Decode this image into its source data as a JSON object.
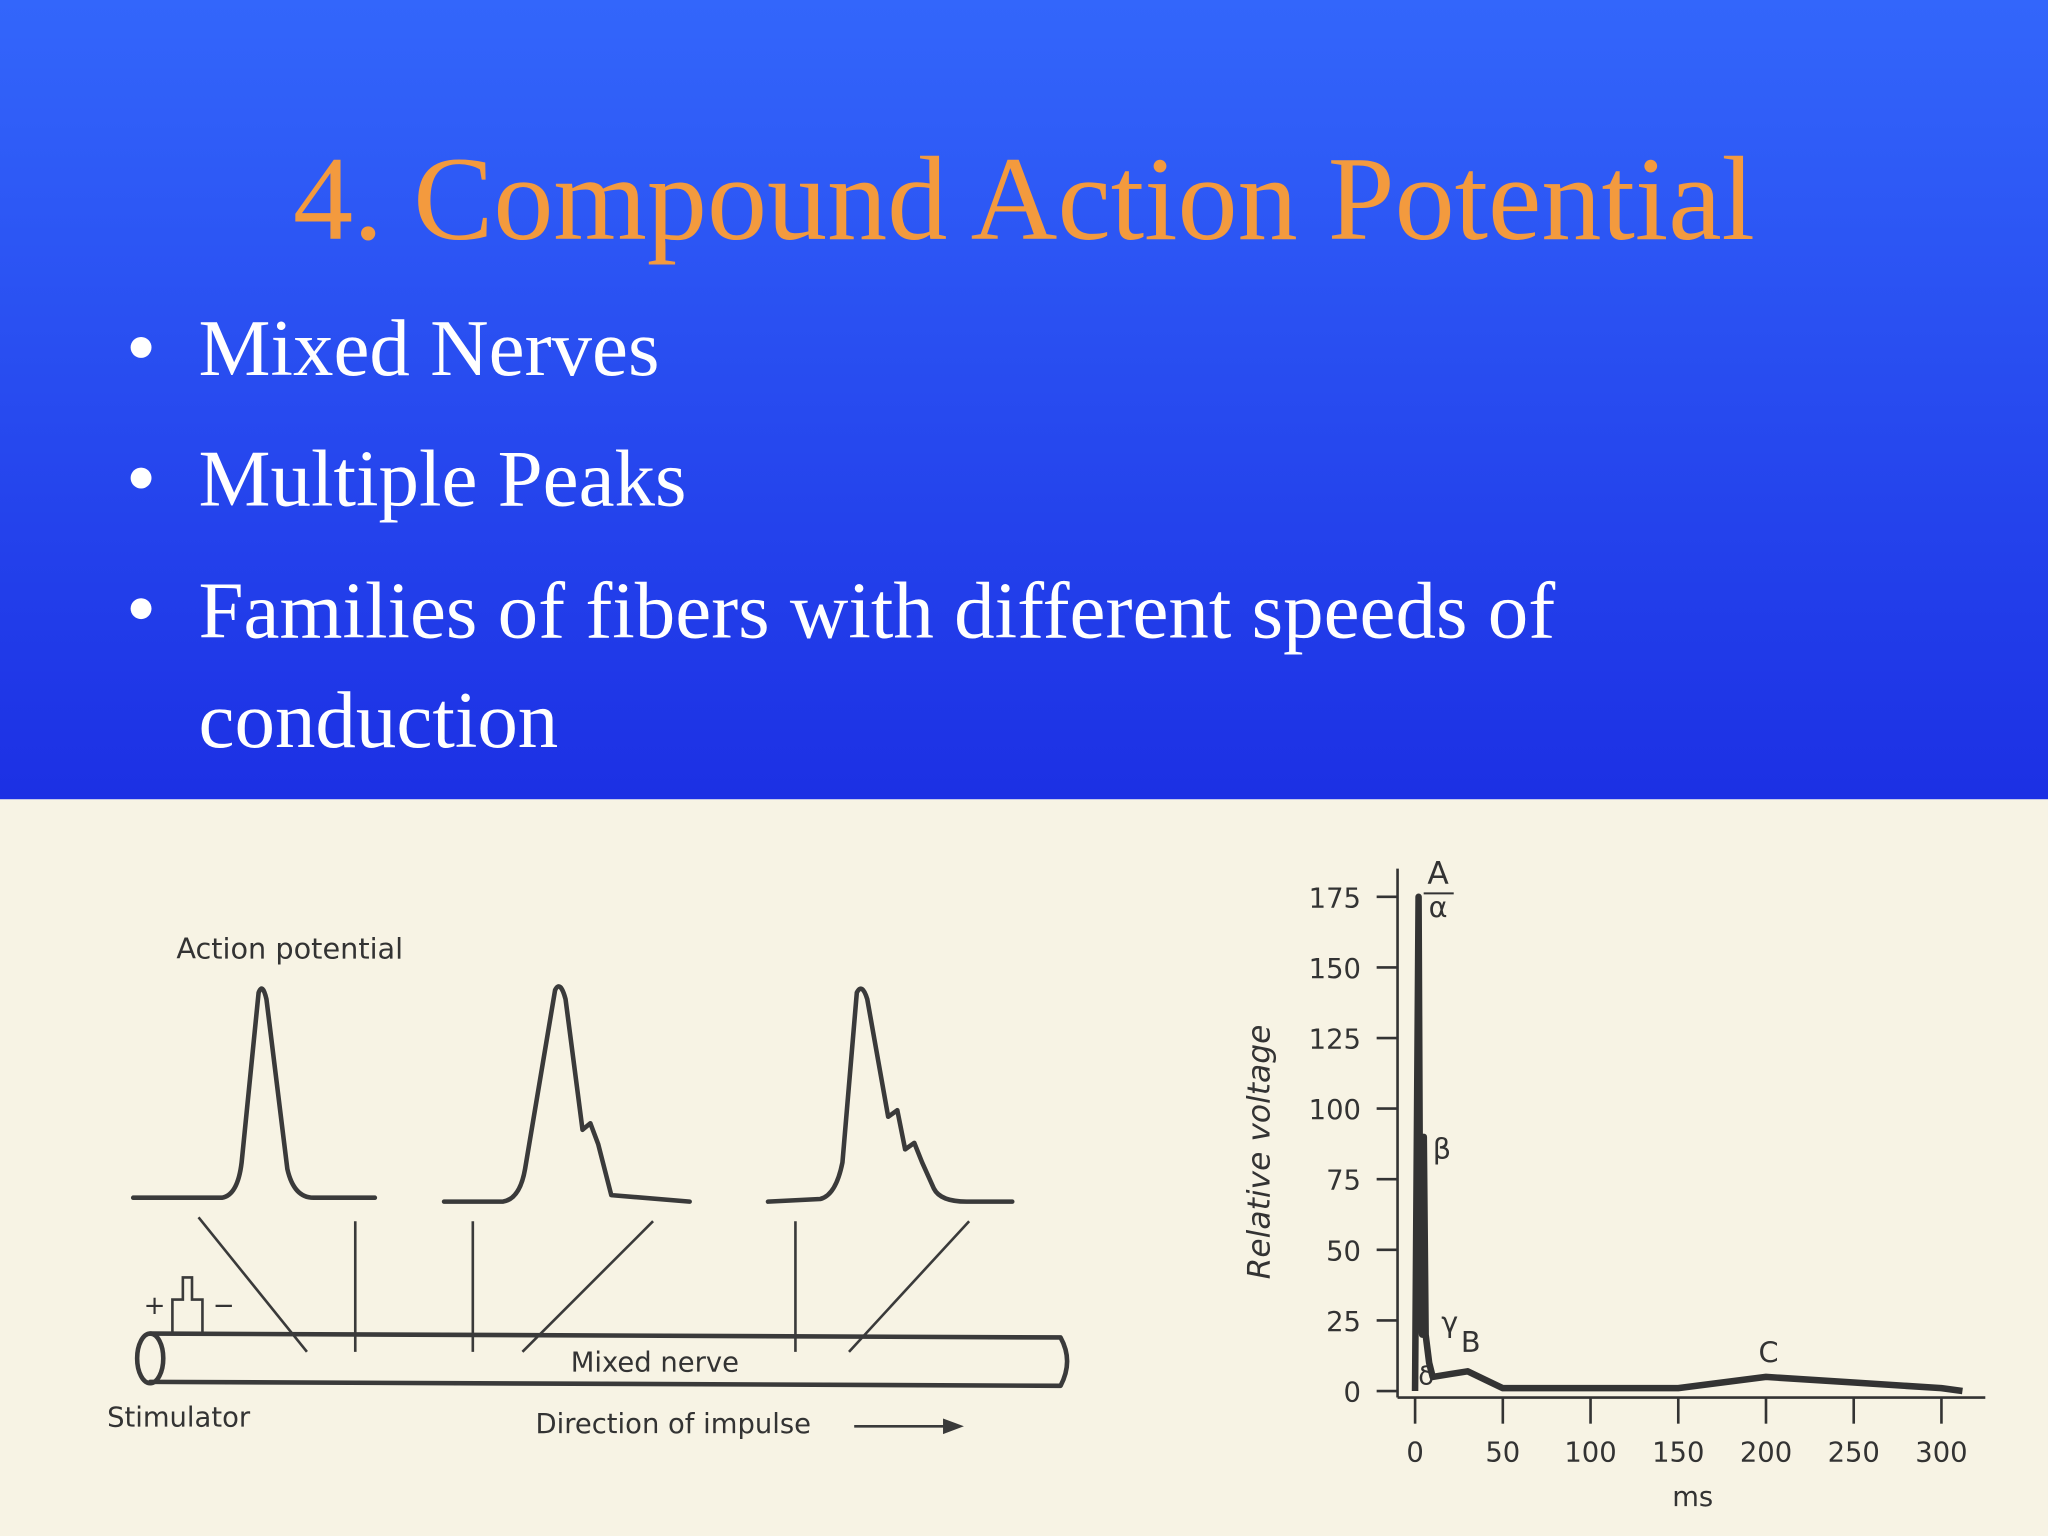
{
  "title": "4. Compound Action Potential",
  "bullets": [
    "Mixed Nerves",
    "Multiple Peaks",
    "Families of fibers with different speeds of",
    "conduction"
  ],
  "figure": {
    "diagram": {
      "action_potential": "Action potential",
      "mixed_nerve": "Mixed nerve",
      "stimulator": "Stimulator",
      "direction": "Direction of impulse",
      "plus": "+",
      "minus": "−"
    },
    "chart": {
      "type": "line",
      "y_label": "Relative voltage",
      "x_label": "ms",
      "x": [
        0,
        2,
        3,
        4,
        5,
        6,
        8,
        10,
        20,
        30,
        40,
        50,
        100,
        150,
        200,
        250,
        300,
        312
      ],
      "values": [
        0,
        175,
        30,
        20,
        90,
        20,
        10,
        5,
        6,
        7,
        4,
        1,
        1,
        1,
        5,
        3,
        1,
        0
      ],
      "color": "#333333",
      "xlim": [
        -10,
        325
      ],
      "ylim": [
        0,
        185
      ],
      "xticks": [
        0,
        50,
        100,
        150,
        200,
        250,
        300
      ],
      "yticks": [
        0,
        25,
        50,
        75,
        100,
        125,
        150,
        175
      ],
      "peak_labels": [
        "A",
        "α",
        "β",
        "γ",
        "B",
        "δ",
        "C"
      ]
    }
  }
}
